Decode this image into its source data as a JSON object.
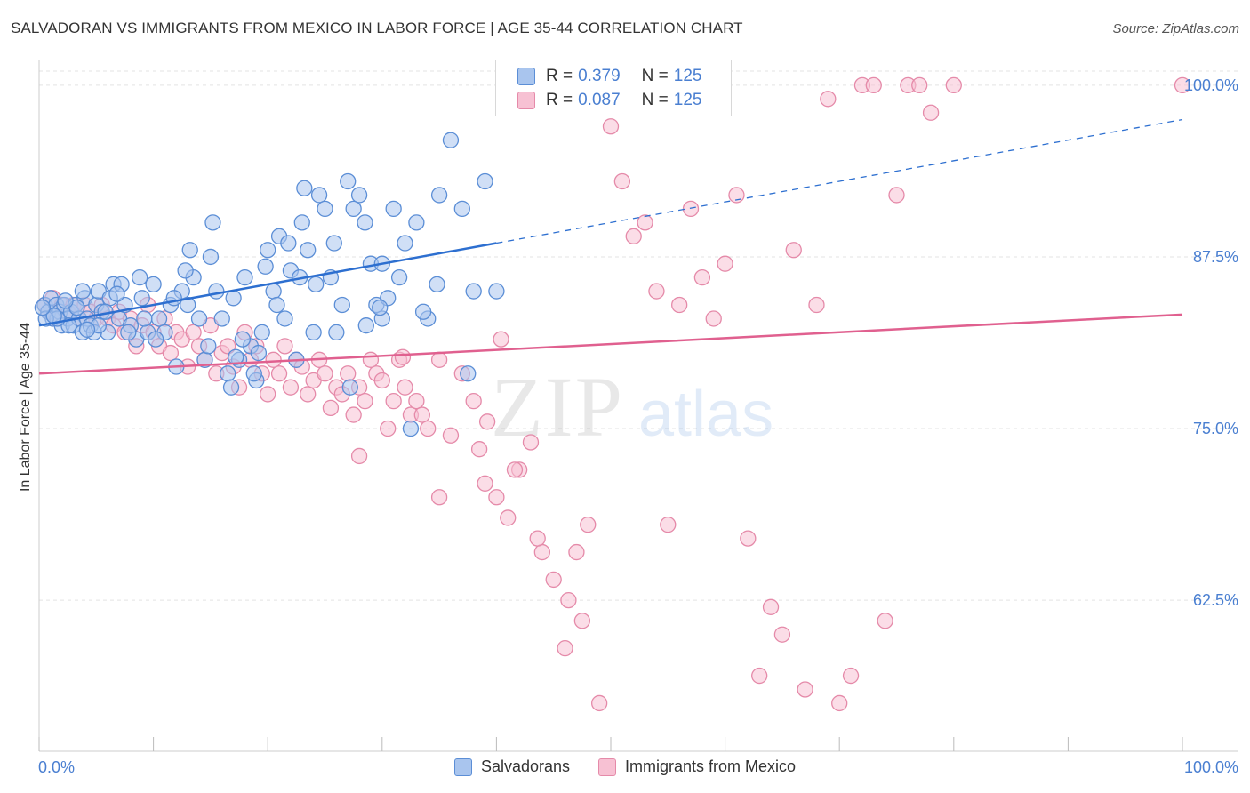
{
  "header": {
    "title": "SALVADORAN VS IMMIGRANTS FROM MEXICO IN LABOR FORCE | AGE 35-44 CORRELATION CHART",
    "source": "Source: ZipAtlas.com"
  },
  "watermark": {
    "zip": "ZIP",
    "atlas": "atlas"
  },
  "legend": {
    "r_label": "R =",
    "n_label": "N =",
    "series": [
      {
        "r": "0.379",
        "n": "125"
      },
      {
        "r": "0.087",
        "n": "125"
      }
    ]
  },
  "colors": {
    "blue_fill": "#a9c5ee",
    "blue_stroke": "#5b8ed6",
    "blue_line": "#2d6fd0",
    "pink_fill": "#f7c1d3",
    "pink_stroke": "#e58aa9",
    "pink_line": "#e0608f",
    "tick_text": "#4a7fd1",
    "grid": "#e3e3e3"
  },
  "chart_data": {
    "type": "scatter",
    "title": "SALVADORAN VS IMMIGRANTS FROM MEXICO IN LABOR FORCE | AGE 35-44 CORRELATION CHART",
    "xlabel": "",
    "ylabel": "In Labor Force | Age 35-44",
    "xlim": [
      0,
      100
    ],
    "ylim": [
      51.5,
      102
    ],
    "x_tick_labels": [
      "0.0%",
      "100.0%"
    ],
    "y_ticks": [
      62.5,
      75.0,
      87.5,
      100.0
    ],
    "y_tick_labels": [
      "62.5%",
      "75.0%",
      "87.5%",
      "100.0%"
    ],
    "grid": true,
    "series": [
      {
        "name": "Salvadorans",
        "color": "#5b8ed6",
        "trend": {
          "x0": 0,
          "y0": 82.5,
          "x1": 40,
          "y1": 88.5,
          "dashed_to_x": 100,
          "dashed_to_y": 97.5
        },
        "points": [
          [
            0.5,
            84
          ],
          [
            0.8,
            83.5
          ],
          [
            1,
            84.5
          ],
          [
            1.2,
            83
          ],
          [
            1.5,
            84
          ],
          [
            1.8,
            83.5
          ],
          [
            2,
            82.5
          ],
          [
            2.2,
            84
          ],
          [
            2.5,
            83
          ],
          [
            2.8,
            83.5
          ],
          [
            3,
            82.5
          ],
          [
            3.2,
            84
          ],
          [
            3.5,
            83
          ],
          [
            3.8,
            82
          ],
          [
            4,
            84.5
          ],
          [
            4.2,
            83
          ],
          [
            4.5,
            82.5
          ],
          [
            5,
            84
          ],
          [
            5.2,
            85
          ],
          [
            5.5,
            83.5
          ],
          [
            6,
            82
          ],
          [
            6.5,
            85.5
          ],
          [
            7,
            83
          ],
          [
            7.5,
            84
          ],
          [
            8,
            82.5
          ],
          [
            8.5,
            81.5
          ],
          [
            9,
            84.5
          ],
          [
            9.5,
            82
          ],
          [
            10,
            85.5
          ],
          [
            10.5,
            83
          ],
          [
            11,
            82
          ],
          [
            11.5,
            84
          ],
          [
            12,
            79.5
          ],
          [
            12.5,
            85
          ],
          [
            13,
            84
          ],
          [
            13.5,
            86
          ],
          [
            14,
            83
          ],
          [
            14.5,
            80
          ],
          [
            15,
            87.5
          ],
          [
            15.5,
            85
          ],
          [
            16,
            83
          ],
          [
            16.5,
            79
          ],
          [
            17,
            84.5
          ],
          [
            17.5,
            80
          ],
          [
            18,
            86
          ],
          [
            18.5,
            81
          ],
          [
            19,
            78.5
          ],
          [
            19.5,
            82
          ],
          [
            20,
            88
          ],
          [
            20.5,
            85
          ],
          [
            21,
            89
          ],
          [
            21.5,
            83
          ],
          [
            22,
            86.5
          ],
          [
            22.5,
            80
          ],
          [
            23,
            90
          ],
          [
            23.5,
            88
          ],
          [
            24,
            82
          ],
          [
            24.5,
            92
          ],
          [
            25,
            91
          ],
          [
            25.5,
            86
          ],
          [
            26,
            82
          ],
          [
            26.5,
            84
          ],
          [
            27,
            93
          ],
          [
            27.5,
            91
          ],
          [
            28,
            92
          ],
          [
            28.5,
            90
          ],
          [
            29,
            87
          ],
          [
            29.5,
            84
          ],
          [
            30,
            83
          ],
          [
            30.5,
            84.5
          ],
          [
            31,
            91
          ],
          [
            31.5,
            86
          ],
          [
            32,
            88.5
          ],
          [
            33,
            90
          ],
          [
            34,
            83
          ],
          [
            35,
            92
          ],
          [
            36,
            96
          ],
          [
            37,
            91
          ],
          [
            38,
            85
          ],
          [
            39,
            93
          ],
          [
            40,
            85
          ],
          [
            15.2,
            90
          ],
          [
            12.8,
            86.5
          ],
          [
            10.2,
            81.5
          ],
          [
            8.8,
            86
          ],
          [
            7.2,
            85.5
          ],
          [
            6.2,
            84.5
          ],
          [
            5.8,
            83.5
          ],
          [
            4.8,
            82
          ],
          [
            3.8,
            85
          ],
          [
            2.6,
            82.5
          ],
          [
            1.6,
            83
          ],
          [
            0.6,
            83
          ],
          [
            16.8,
            78
          ],
          [
            17.8,
            81.5
          ],
          [
            18.8,
            79
          ],
          [
            20.8,
            84
          ],
          [
            21.8,
            88.5
          ],
          [
            22.8,
            86
          ],
          [
            24.2,
            85.5
          ],
          [
            25.8,
            88.5
          ],
          [
            28.6,
            82.5
          ],
          [
            29.8,
            83.8
          ],
          [
            33.6,
            83.5
          ],
          [
            34.8,
            85.5
          ],
          [
            37.5,
            79
          ],
          [
            30,
            87
          ],
          [
            19.2,
            80.5
          ],
          [
            14.8,
            81
          ],
          [
            13.2,
            88
          ],
          [
            11.8,
            84.5
          ],
          [
            9.2,
            83
          ],
          [
            7.8,
            82
          ],
          [
            6.8,
            84.8
          ],
          [
            5.2,
            82.5
          ],
          [
            4.2,
            82.2
          ],
          [
            3.3,
            83.8
          ],
          [
            2.3,
            84.3
          ],
          [
            1.3,
            83.2
          ],
          [
            0.3,
            83.8
          ],
          [
            27.2,
            78
          ],
          [
            32.5,
            75
          ],
          [
            23.2,
            92.5
          ],
          [
            19.8,
            86.8
          ],
          [
            17.2,
            80.2
          ]
        ]
      },
      {
        "name": "Immigrants from Mexico",
        "color": "#e58aa9",
        "trend": {
          "x0": 0,
          "y0": 79,
          "x1": 100,
          "y1": 83.3
        },
        "points": [
          [
            0.5,
            84
          ],
          [
            0.8,
            83.5
          ],
          [
            1.2,
            84.5
          ],
          [
            1.5,
            83
          ],
          [
            2,
            84
          ],
          [
            2.5,
            83.5
          ],
          [
            3,
            84
          ],
          [
            3.5,
            83
          ],
          [
            4,
            84
          ],
          [
            4.5,
            83.5
          ],
          [
            5,
            83
          ],
          [
            5.5,
            84
          ],
          [
            6,
            83
          ],
          [
            6.5,
            82.5
          ],
          [
            7,
            83.5
          ],
          [
            7.5,
            82
          ],
          [
            8,
            83
          ],
          [
            8.5,
            81
          ],
          [
            9,
            82.5
          ],
          [
            9.5,
            84
          ],
          [
            10,
            82
          ],
          [
            10.5,
            81
          ],
          [
            11,
            83
          ],
          [
            11.5,
            80.5
          ],
          [
            12,
            82
          ],
          [
            12.5,
            81.5
          ],
          [
            13,
            79.5
          ],
          [
            13.5,
            82
          ],
          [
            14,
            81
          ],
          [
            14.5,
            80
          ],
          [
            15,
            82.5
          ],
          [
            15.5,
            79
          ],
          [
            16,
            80.5
          ],
          [
            16.5,
            81
          ],
          [
            17,
            79.5
          ],
          [
            17.5,
            78
          ],
          [
            18,
            82
          ],
          [
            18.5,
            80
          ],
          [
            19,
            81
          ],
          [
            19.5,
            79
          ],
          [
            20,
            77.5
          ],
          [
            20.5,
            80
          ],
          [
            21,
            79
          ],
          [
            21.5,
            81
          ],
          [
            22,
            78
          ],
          [
            22.5,
            80
          ],
          [
            23,
            79.5
          ],
          [
            23.5,
            77.5
          ],
          [
            24,
            78.5
          ],
          [
            24.5,
            80
          ],
          [
            25,
            79
          ],
          [
            25.5,
            76.5
          ],
          [
            26,
            78
          ],
          [
            26.5,
            77.5
          ],
          [
            27,
            79
          ],
          [
            27.5,
            76
          ],
          [
            28,
            78
          ],
          [
            28.5,
            77
          ],
          [
            29,
            80
          ],
          [
            29.5,
            79
          ],
          [
            30,
            78.5
          ],
          [
            30.5,
            75
          ],
          [
            31,
            77
          ],
          [
            31.5,
            80
          ],
          [
            32,
            78
          ],
          [
            32.5,
            76
          ],
          [
            33,
            77
          ],
          [
            33.5,
            76
          ],
          [
            34,
            75
          ],
          [
            35,
            80
          ],
          [
            36,
            74.5
          ],
          [
            37,
            79
          ],
          [
            38,
            77
          ],
          [
            39,
            71
          ],
          [
            40,
            70
          ],
          [
            41,
            68.5
          ],
          [
            42,
            72
          ],
          [
            43,
            74
          ],
          [
            44,
            66
          ],
          [
            45,
            64
          ],
          [
            46,
            59
          ],
          [
            47,
            66
          ],
          [
            48,
            68
          ],
          [
            49,
            55
          ],
          [
            50,
            97
          ],
          [
            51,
            93
          ],
          [
            52,
            89
          ],
          [
            53,
            90
          ],
          [
            54,
            85
          ],
          [
            55,
            68
          ],
          [
            56,
            84
          ],
          [
            57,
            91
          ],
          [
            58,
            86
          ],
          [
            59,
            83
          ],
          [
            60,
            87
          ],
          [
            61,
            92
          ],
          [
            62,
            67
          ],
          [
            63,
            57
          ],
          [
            64,
            62
          ],
          [
            65,
            60
          ],
          [
            66,
            88
          ],
          [
            67,
            56
          ],
          [
            68,
            84
          ],
          [
            69,
            99
          ],
          [
            70,
            55
          ],
          [
            71,
            57
          ],
          [
            72,
            100
          ],
          [
            73,
            100
          ],
          [
            74,
            61
          ],
          [
            75,
            92
          ],
          [
            76,
            100
          ],
          [
            77,
            100
          ],
          [
            78,
            98
          ],
          [
            80,
            100
          ],
          [
            100,
            100
          ],
          [
            28,
            73
          ],
          [
            35,
            70
          ],
          [
            31.8,
            80.2
          ],
          [
            40.4,
            81.5
          ],
          [
            39.2,
            75.5
          ],
          [
            41.6,
            72
          ],
          [
            43.6,
            67
          ],
          [
            38.5,
            73.5
          ],
          [
            46.3,
            62.5
          ],
          [
            47.5,
            61
          ]
        ]
      }
    ]
  },
  "bottom_legend": [
    "Salvadorans",
    "Immigrants from Mexico"
  ],
  "axis": {
    "x_left_label": "0.0%",
    "x_right_label": "100.0%",
    "ylabel": "In Labor Force | Age 35-44"
  }
}
